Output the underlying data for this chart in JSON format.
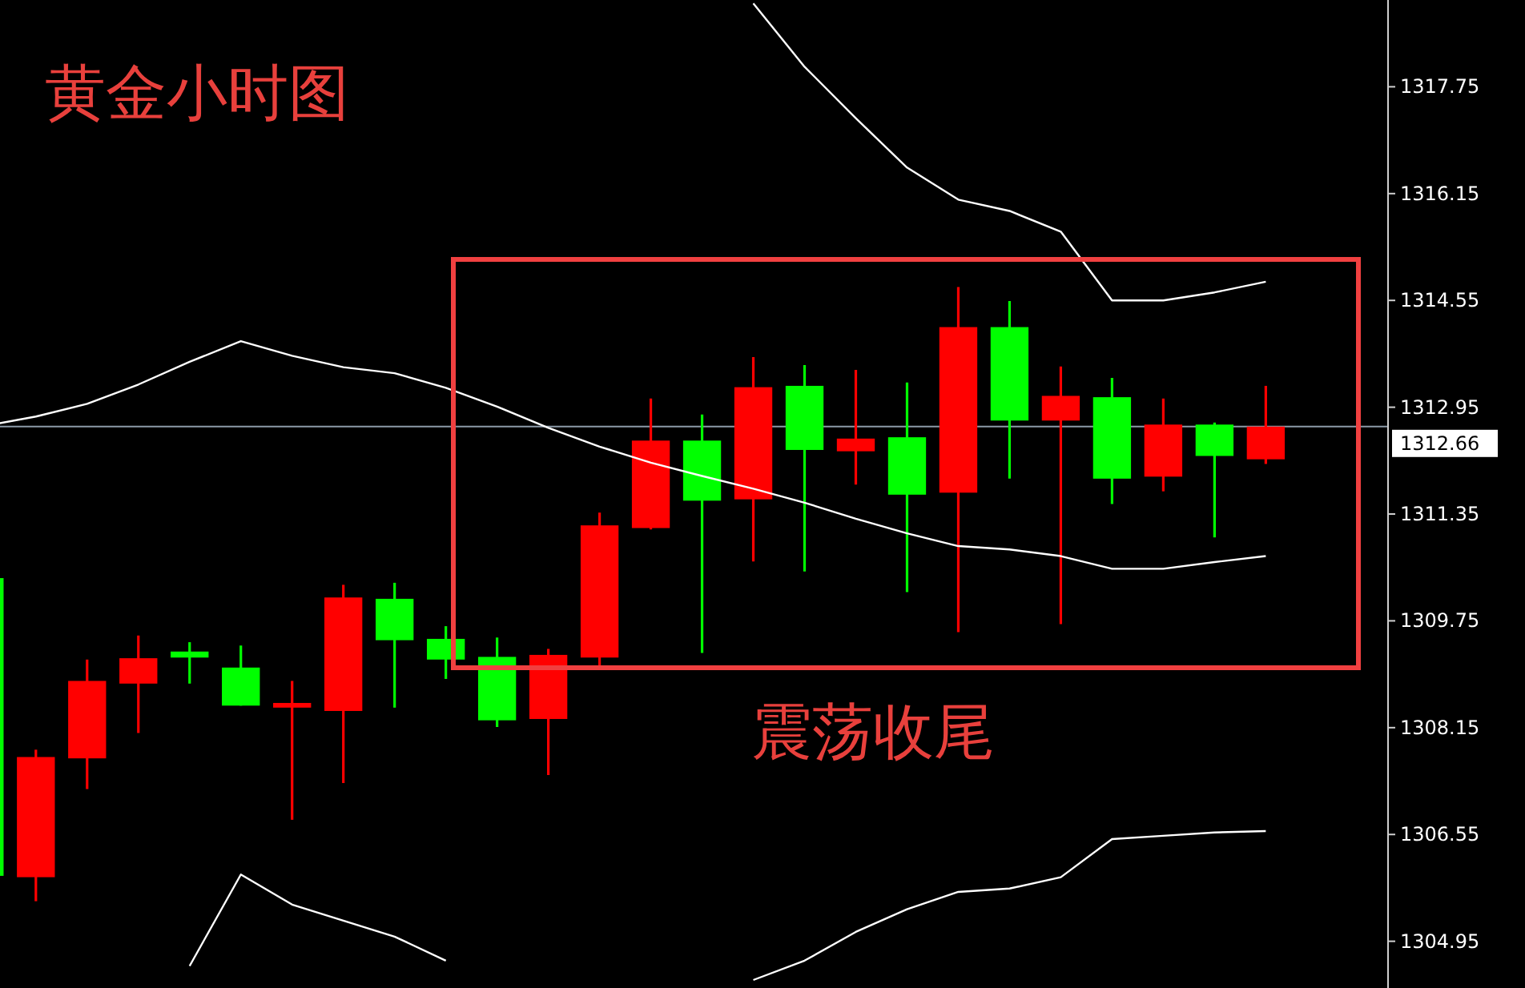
{
  "chart_data": {
    "type": "candlestick",
    "title": "黄金小时图",
    "annotations": [
      "震荡收尾"
    ],
    "categories": [
      null,
      null,
      null,
      null,
      null,
      null,
      null,
      null,
      null,
      null,
      null,
      null,
      null,
      null,
      null,
      null,
      null,
      null,
      null,
      null,
      null,
      null,
      null,
      null,
      null,
      null
    ],
    "ohlc": [
      [
        1310.39,
        1310.39,
        1305.93,
        1305.93
      ],
      [
        1305.91,
        1307.82,
        1305.55,
        1307.71
      ],
      [
        1307.69,
        1309.17,
        1307.23,
        1308.85
      ],
      [
        1308.81,
        1309.53,
        1308.07,
        1309.19
      ],
      [
        1309.29,
        1309.43,
        1308.81,
        1309.2
      ],
      [
        1309.05,
        1309.38,
        1308.48,
        1308.48
      ],
      [
        1308.45,
        1308.85,
        1306.77,
        1308.52
      ],
      [
        1308.4,
        1310.29,
        1307.32,
        1310.1
      ],
      [
        1310.08,
        1310.32,
        1308.45,
        1309.46
      ],
      [
        1309.48,
        1309.67,
        1308.88,
        1309.17
      ],
      [
        1309.21,
        1309.5,
        1308.16,
        1308.26
      ],
      [
        1308.28,
        1309.33,
        1307.44,
        1309.24
      ],
      [
        1309.2,
        1311.37,
        1309.05,
        1311.18
      ],
      [
        1311.14,
        1313.08,
        1311.12,
        1312.45
      ],
      [
        1312.45,
        1312.84,
        1309.27,
        1311.55
      ],
      [
        1311.57,
        1313.7,
        1310.64,
        1313.25
      ],
      [
        1313.27,
        1313.58,
        1310.49,
        1312.31
      ],
      [
        1312.29,
        1313.51,
        1311.79,
        1312.48
      ],
      [
        1312.5,
        1313.32,
        1310.18,
        1311.64
      ],
      [
        1311.67,
        1314.75,
        1309.58,
        1314.15
      ],
      [
        1314.15,
        1314.54,
        1311.88,
        1312.75
      ],
      [
        1312.75,
        1313.56,
        1309.7,
        1313.12
      ],
      [
        1313.1,
        1313.39,
        1311.5,
        1311.88
      ],
      [
        1311.91,
        1313.08,
        1311.69,
        1312.69
      ],
      [
        1312.69,
        1312.72,
        1311.0,
        1312.22
      ],
      [
        1312.17,
        1313.27,
        1312.1,
        1312.66
      ]
    ],
    "colors": [
      "#00ff00",
      "#ff0000",
      "#ff0000",
      "#ff0000",
      "#00ff00",
      "#00ff00",
      "#ff0000",
      "#ff0000",
      "#00ff00",
      "#00ff00",
      "#00ff00",
      "#ff0000",
      "#ff0000",
      "#ff0000",
      "#00ff00",
      "#ff0000",
      "#00ff00",
      "#ff0000",
      "#00ff00",
      "#ff0000",
      "#00ff00",
      "#ff0000",
      "#00ff00",
      "#ff0000",
      "#00ff00",
      "#ff0000"
    ],
    "series": [
      {
        "type": "line",
        "color": "#ffffff",
        "values": [
          null,
          null,
          null,
          null,
          null,
          null,
          null,
          null,
          null,
          null,
          null,
          null,
          null,
          null,
          null,
          1319.0,
          1318.05,
          1317.28,
          1316.54,
          1316.06,
          1315.89,
          1315.58,
          1314.55,
          1314.55,
          1314.67,
          1314.83
        ]
      },
      {
        "type": "line",
        "color": "#ffffff",
        "values": [
          1312.67,
          1312.81,
          1313.0,
          1313.29,
          1313.63,
          1313.94,
          1313.72,
          1313.55,
          1313.46,
          1313.24,
          1312.96,
          1312.64,
          1312.36,
          1312.12,
          1311.92,
          1311.73,
          1311.52,
          1311.28,
          1311.06,
          1310.87,
          1310.82,
          1310.72,
          1310.53,
          1310.53,
          1310.63,
          1310.72
        ]
      },
      {
        "type": "line",
        "color": "#ffffff",
        "values": [
          null,
          null,
          null,
          null,
          1304.58,
          1305.95,
          1305.5,
          1305.26,
          1305.02,
          1304.66,
          null,
          null,
          null,
          null,
          null,
          1304.37,
          1304.66,
          1305.09,
          1305.43,
          1305.69,
          1305.74,
          1305.91,
          1306.48,
          1306.53,
          1306.58,
          1306.6
        ]
      }
    ],
    "ylim": [
      1304.25,
      1319.05
    ],
    "yticks": [
      1304.95,
      1306.55,
      1308.15,
      1309.75,
      1311.35,
      1312.95,
      1314.55,
      1316.15,
      1317.75
    ],
    "tick_labels": "y",
    "ref_lines": [
      {
        "axis": "y",
        "value": 1312.66,
        "label": "1312.66",
        "color": "#8c9aa8"
      }
    ]
  }
}
